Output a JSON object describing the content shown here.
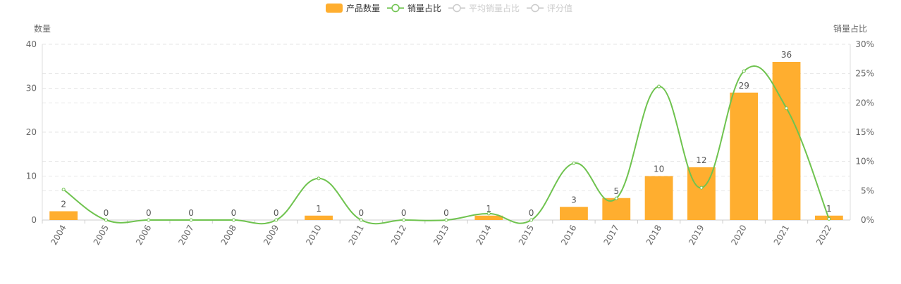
{
  "chart_data": {
    "type": "bar-line",
    "y_label": "数量",
    "y2_label": "销量占比",
    "categories": [
      "2004",
      "2005",
      "2006",
      "2007",
      "2008",
      "2009",
      "2010",
      "2011",
      "2012",
      "2013",
      "2014",
      "2015",
      "2016",
      "2017",
      "2018",
      "2019",
      "2020",
      "2021",
      "2022"
    ],
    "series": [
      {
        "name": "产品数量",
        "type": "bar",
        "color": "#ffae2f",
        "values": [
          2,
          0,
          0,
          0,
          0,
          0,
          1,
          0,
          0,
          0,
          1,
          0,
          3,
          5,
          10,
          12,
          29,
          36,
          1
        ]
      },
      {
        "name": "销量占比",
        "type": "line",
        "axis": "y2",
        "color": "#6fc34f",
        "values": [
          5.2,
          0,
          0,
          0,
          0,
          0,
          7.1,
          0,
          0,
          0,
          1.1,
          0,
          9.7,
          3.7,
          22.8,
          5.5,
          25.4,
          19.1,
          0.2
        ]
      },
      {
        "name": "平均销量占比",
        "type": "line",
        "axis": "y2",
        "color": "#cccccc",
        "hidden": true
      },
      {
        "name": "评分值",
        "type": "line",
        "axis": "y2",
        "color": "#cccccc",
        "hidden": true
      }
    ],
    "ylim": [
      0,
      40
    ],
    "yticks": [
      0,
      10,
      20,
      30,
      40
    ],
    "y2lim": [
      0,
      30
    ],
    "y2ticks": [
      {
        "value": 0,
        "label": "0%"
      },
      {
        "value": 5,
        "label": "5%"
      },
      {
        "value": 10,
        "label": "10%"
      },
      {
        "value": 15,
        "label": "15%"
      },
      {
        "value": 20,
        "label": "20%"
      },
      {
        "value": 25,
        "label": "25%"
      },
      {
        "value": 30,
        "label": "30%"
      }
    ],
    "grid": true
  }
}
